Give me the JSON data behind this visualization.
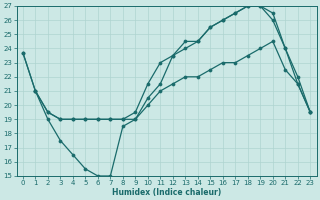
{
  "xlabel": "Humidex (Indice chaleur)",
  "bg_color": "#cce8e5",
  "line_color": "#1a6b6b",
  "grid_color": "#afd4d0",
  "xlim": [
    -0.5,
    23.5
  ],
  "ylim": [
    15,
    27
  ],
  "yticks": [
    15,
    16,
    17,
    18,
    19,
    20,
    21,
    22,
    23,
    24,
    25,
    26,
    27
  ],
  "xticks": [
    0,
    1,
    2,
    3,
    4,
    5,
    6,
    7,
    8,
    9,
    10,
    11,
    12,
    13,
    14,
    15,
    16,
    17,
    18,
    19,
    20,
    21,
    22,
    23
  ],
  "series1_x": [
    0,
    1,
    2,
    3,
    4,
    5,
    6,
    7,
    8,
    9,
    10,
    11,
    12,
    13,
    14,
    15,
    16,
    17,
    18,
    19,
    20,
    21,
    22,
    23
  ],
  "series1_y": [
    23.7,
    21.0,
    19.5,
    19.0,
    19.0,
    19.0,
    19.0,
    19.0,
    19.0,
    19.0,
    20.0,
    21.0,
    21.5,
    22.0,
    22.0,
    22.5,
    23.0,
    23.0,
    23.5,
    24.0,
    24.5,
    22.5,
    21.5,
    19.5
  ],
  "series2_x": [
    1,
    2,
    3,
    4,
    5,
    6,
    7,
    8,
    9,
    10,
    11,
    12,
    13,
    14,
    15,
    16,
    17,
    18,
    19,
    20,
    21,
    22,
    23
  ],
  "series2_y": [
    21.0,
    19.0,
    17.5,
    16.5,
    15.5,
    15.0,
    15.0,
    18.5,
    19.0,
    20.5,
    21.5,
    23.5,
    24.5,
    24.5,
    25.5,
    26.0,
    26.5,
    27.0,
    27.0,
    26.5,
    24.0,
    22.0,
    19.5
  ],
  "series3_x": [
    0,
    1,
    2,
    3,
    4,
    5,
    6,
    7,
    8,
    9,
    10,
    11,
    12,
    13,
    14,
    15,
    16,
    17,
    18,
    19,
    20,
    21,
    22,
    23
  ],
  "series3_y": [
    23.7,
    21.0,
    19.5,
    19.0,
    19.0,
    19.0,
    19.0,
    19.0,
    19.0,
    19.5,
    21.5,
    23.0,
    23.5,
    24.0,
    24.5,
    25.5,
    26.0,
    26.5,
    27.0,
    27.0,
    26.0,
    24.0,
    21.5,
    19.5
  ]
}
